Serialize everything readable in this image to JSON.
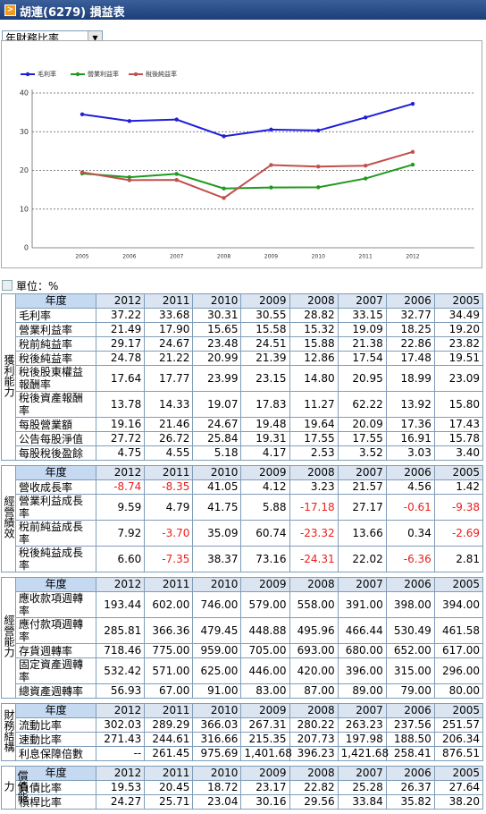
{
  "header": {
    "title": "胡連(6279) 損益表"
  },
  "select": {
    "value": "年財務比率"
  },
  "chart_data": {
    "type": "line",
    "x": [
      "2005",
      "2006",
      "2007",
      "2008",
      "2009",
      "2010",
      "2011",
      "2012"
    ],
    "series": [
      {
        "name": "毛利率",
        "color": "#1f1fd6",
        "values": [
          34.49,
          32.77,
          33.15,
          28.82,
          30.55,
          30.31,
          33.68,
          37.22
        ]
      },
      {
        "name": "營業利益率",
        "color": "#1e9a1e",
        "values": [
          19.2,
          18.25,
          19.09,
          15.32,
          15.58,
          15.65,
          17.9,
          21.49
        ]
      },
      {
        "name": "稅後純益率",
        "color": "#c0504d",
        "values": [
          19.51,
          17.48,
          17.54,
          12.86,
          21.39,
          20.99,
          21.22,
          24.78
        ]
      }
    ],
    "ylim": [
      0,
      40
    ],
    "yticks": [
      0,
      10,
      20,
      30,
      40
    ],
    "grid": true,
    "legend": "top-left"
  },
  "unit": "單位：%",
  "tables": [
    {
      "section": "獲利能力",
      "header": [
        "年度",
        "2012",
        "2011",
        "2010",
        "2009",
        "2008",
        "2007",
        "2006",
        "2005"
      ],
      "rows": [
        [
          "毛利率",
          "37.22",
          "33.68",
          "30.31",
          "30.55",
          "28.82",
          "33.15",
          "32.77",
          "34.49"
        ],
        [
          "營業利益率",
          "21.49",
          "17.90",
          "15.65",
          "15.58",
          "15.32",
          "19.09",
          "18.25",
          "19.20"
        ],
        [
          "稅前純益率",
          "29.17",
          "24.67",
          "23.48",
          "24.51",
          "15.88",
          "21.38",
          "22.86",
          "23.82"
        ],
        [
          "稅後純益率",
          "24.78",
          "21.22",
          "20.99",
          "21.39",
          "12.86",
          "17.54",
          "17.48",
          "19.51"
        ],
        [
          "稅後股東權益報酬率",
          "17.64",
          "17.77",
          "23.99",
          "23.15",
          "14.80",
          "20.95",
          "18.99",
          "23.09"
        ],
        [
          "稅後資產報酬率",
          "13.78",
          "14.33",
          "19.07",
          "17.83",
          "11.27",
          "62.22",
          "13.92",
          "15.80"
        ],
        [
          "每股營業額",
          "19.16",
          "21.46",
          "24.67",
          "19.48",
          "19.64",
          "20.09",
          "17.36",
          "17.43"
        ],
        [
          "公告每股淨值",
          "27.72",
          "26.72",
          "25.84",
          "19.31",
          "17.55",
          "17.55",
          "16.91",
          "15.78"
        ],
        [
          "每股稅後盈餘",
          "4.75",
          "4.55",
          "5.18",
          "4.17",
          "2.53",
          "3.52",
          "3.03",
          "3.40"
        ]
      ]
    },
    {
      "section": "經營績效",
      "header": [
        "年度",
        "2012",
        "2011",
        "2010",
        "2009",
        "2008",
        "2007",
        "2006",
        "2005"
      ],
      "rows": [
        [
          "營收成長率",
          "-8.74",
          "-8.35",
          "41.05",
          "4.12",
          "3.23",
          "21.57",
          "4.56",
          "1.42"
        ],
        [
          "營業利益成長率",
          "9.59",
          "4.79",
          "41.75",
          "5.88",
          "-17.18",
          "27.17",
          "-0.61",
          "-9.38"
        ],
        [
          "稅前純益成長率",
          "7.92",
          "-3.70",
          "35.09",
          "60.74",
          "-23.32",
          "13.66",
          "0.34",
          "-2.69"
        ],
        [
          "稅後純益成長率",
          "6.60",
          "-7.35",
          "38.37",
          "73.16",
          "-24.31",
          "22.02",
          "-6.36",
          "2.81"
        ]
      ]
    },
    {
      "section": "經營能力",
      "header": [
        "年度",
        "2012",
        "2011",
        "2010",
        "2009",
        "2008",
        "2007",
        "2006",
        "2005"
      ],
      "rows": [
        [
          "應收款項週轉率",
          "193.44",
          "602.00",
          "746.00",
          "579.00",
          "558.00",
          "391.00",
          "398.00",
          "394.00"
        ],
        [
          "應付款項週轉率",
          "285.81",
          "366.36",
          "479.45",
          "448.88",
          "495.96",
          "466.44",
          "530.49",
          "461.58"
        ],
        [
          "存貨週轉率",
          "718.46",
          "775.00",
          "959.00",
          "705.00",
          "693.00",
          "680.00",
          "652.00",
          "617.00"
        ],
        [
          "固定資產週轉率",
          "532.42",
          "571.00",
          "625.00",
          "446.00",
          "420.00",
          "396.00",
          "315.00",
          "296.00"
        ],
        [
          "總資產週轉率",
          "56.93",
          "67.00",
          "91.00",
          "83.00",
          "87.00",
          "89.00",
          "79.00",
          "80.00"
        ]
      ]
    },
    {
      "section": "財務結構",
      "header": [
        "年度",
        "2012",
        "2011",
        "2010",
        "2009",
        "2008",
        "2007",
        "2006",
        "2005"
      ],
      "rows": [
        [
          "流動比率",
          "302.03",
          "289.29",
          "366.03",
          "267.31",
          "280.22",
          "263.23",
          "237.56",
          "251.57"
        ],
        [
          "速動比率",
          "271.43",
          "244.61",
          "316.66",
          "215.35",
          "207.73",
          "197.98",
          "188.50",
          "206.34"
        ],
        [
          "利息保障倍數",
          "--",
          "261.45",
          "975.69",
          "1,401.68",
          "396.23",
          "1,421.68",
          "258.41",
          "876.51"
        ]
      ]
    },
    {
      "section": "償債能力",
      "header": [
        "年度",
        "2012",
        "2011",
        "2010",
        "2009",
        "2008",
        "2007",
        "2006",
        "2005"
      ],
      "rows": [
        [
          "負債比率",
          "19.53",
          "20.45",
          "18.72",
          "23.17",
          "22.82",
          "25.28",
          "26.37",
          "27.64"
        ],
        [
          "槓桿比率",
          "24.27",
          "25.71",
          "23.04",
          "30.16",
          "29.56",
          "33.84",
          "35.82",
          "38.20"
        ]
      ]
    }
  ]
}
